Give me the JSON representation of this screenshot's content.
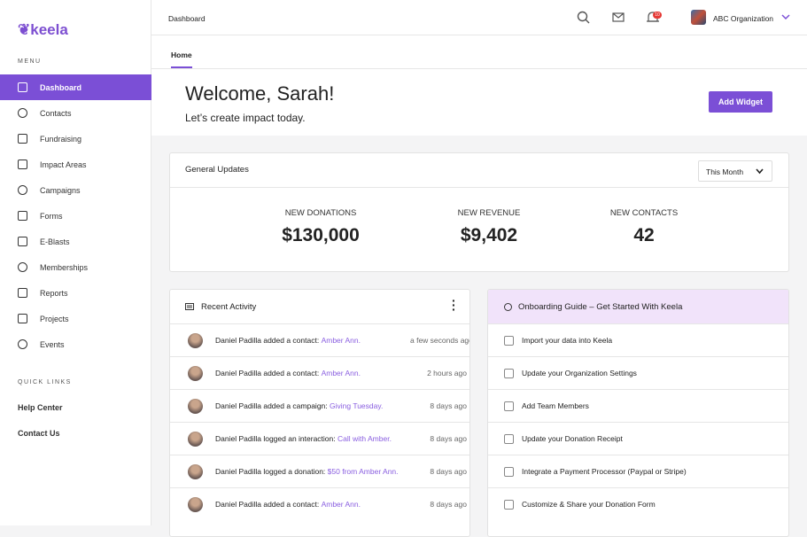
{
  "sidebar": {
    "logo": "keela",
    "menu_label": "MENU",
    "menu": [
      "Dashboard",
      "Contacts",
      "Fundraising",
      "Impact Areas",
      "Campaigns",
      "Forms",
      "E-Blasts",
      "Memberships",
      "Reports",
      "Projects",
      "Events"
    ],
    "quick_links_label": "QUICK LINKS",
    "quick_links": [
      "Help Center",
      "Contact Us"
    ]
  },
  "topbar": {
    "breadcrumb": "Dashboard",
    "notification_count": "10",
    "organization": "ABC Organization"
  },
  "tabs": [
    "Home"
  ],
  "welcome": {
    "title": "Welcome, Sarah!",
    "subtitle": "Let’s create impact today.",
    "button": "Add Widget"
  },
  "general_updates": {
    "title": "General Updates",
    "period": "This Month",
    "stats": [
      {
        "label": "NEW DONATIONS",
        "value": "$130,000"
      },
      {
        "label": "NEW REVENUE",
        "value": "$9,402"
      },
      {
        "label": "NEW CONTACTS",
        "value": "42"
      }
    ]
  },
  "recent_activity": {
    "title": "Recent Activity",
    "items": [
      {
        "text": "Daniel Padilla added a contact:",
        "link": "Amber Ann.",
        "time": "a few seconds ago"
      },
      {
        "text": "Daniel Padilla added a contact:",
        "link": "Amber Ann.",
        "time": "2 hours ago"
      },
      {
        "text": "Daniel Padilla added a campaign:",
        "link": "Giving Tuesday.",
        "time": "8 days ago"
      },
      {
        "text": "Daniel Padilla logged an interaction:",
        "link": "Call with Amber.",
        "time": "8 days ago"
      },
      {
        "text": "Daniel Padilla logged a donation:",
        "link": "$50 from Amber Ann.",
        "time": "8 days ago"
      },
      {
        "text": "Daniel Padilla added a contact:",
        "link": "Amber Ann.",
        "time": "8 days ago"
      }
    ]
  },
  "onboarding": {
    "title": "Onboarding Guide – Get Started With Keela",
    "items": [
      "Import your data into Keela",
      "Update your Organization Settings",
      "Add Team Members",
      "Update your Donation Receipt",
      "Integrate a Payment Processor (Paypal or Stripe)",
      "Customize & Share your Donation Form"
    ]
  }
}
